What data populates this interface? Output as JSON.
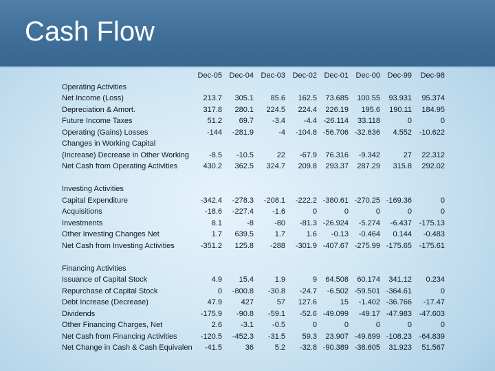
{
  "slide": {
    "title": "Cash Flow"
  },
  "columns": [
    "Dec-05",
    "Dec-04",
    "Dec-03",
    "Dec-02",
    "Dec-01",
    "Dec-00",
    "Dec-99",
    "Dec-98"
  ],
  "rows": [
    {
      "label": "Operating Activities",
      "values": []
    },
    {
      "label": "Net Income (Loss)",
      "values": [
        "213.7",
        "305.1",
        "85.6",
        "162.5",
        "73.685",
        "100.55",
        "93.931",
        "95.374"
      ]
    },
    {
      "label": "Depreciation & Amort.",
      "values": [
        "317.8",
        "280.1",
        "224.5",
        "224.4",
        "226.19",
        "195.6",
        "190.11",
        "184.95"
      ]
    },
    {
      "label": "Future Income Taxes",
      "values": [
        "51.2",
        "69.7",
        "-3.4",
        "-4.4",
        "-26.114",
        "33.118",
        "0",
        "0"
      ]
    },
    {
      "label": "Operating (Gains) Losses",
      "values": [
        "-144",
        "-281.9",
        "-4",
        "-104.8",
        "-56.706",
        "-32.636",
        "4.552",
        "-10.622"
      ]
    },
    {
      "label": "Changes in Working Capital",
      "values": []
    },
    {
      "label": "(Increase) Decrease in Other Working",
      "values": [
        "-8.5",
        "-10.5",
        "22",
        "-67.9",
        "76.316",
        "-9.342",
        "27",
        "22.312"
      ]
    },
    {
      "label": "Net Cash from Operating Activities",
      "values": [
        "430.2",
        "362.5",
        "324.7",
        "209.8",
        "293.37",
        "287.29",
        "315.8",
        "292.02"
      ]
    },
    {
      "label": "",
      "values": []
    },
    {
      "label": "Investing Activities",
      "values": []
    },
    {
      "label": "Capital Expenditure",
      "values": [
        "-342.4",
        "-278.3",
        "-208.1",
        "-222.2",
        "-380.61",
        "-270.25",
        "-169.36",
        "0"
      ]
    },
    {
      "label": "Acquisitions",
      "values": [
        "-18.6",
        "-227.4",
        "-1.6",
        "0",
        "0",
        "0",
        "0",
        "0"
      ]
    },
    {
      "label": "Investments",
      "values": [
        "8.1",
        "-8",
        "-80",
        "-81.3",
        "-26.924",
        "-5.274",
        "-6.437",
        "-175.13"
      ]
    },
    {
      "label": "Other Investing Changes Net",
      "values": [
        "1.7",
        "639.5",
        "1.7",
        "1.6",
        "-0.13",
        "-0.464",
        "0.144",
        "-0.483"
      ]
    },
    {
      "label": "Net Cash from Investing Activities",
      "values": [
        "-351.2",
        "125.8",
        "-288",
        "-301.9",
        "-407.67",
        "-275.99",
        "-175.65",
        "-175.61"
      ]
    },
    {
      "label": "",
      "values": []
    },
    {
      "label": "Financing Activities",
      "values": []
    },
    {
      "label": "Issuance of Capital Stock",
      "values": [
        "4.9",
        "15.4",
        "1.9",
        "9",
        "64.508",
        "60.174",
        "341.12",
        "0.234"
      ]
    },
    {
      "label": "Repurchase of Capital Stock",
      "values": [
        "0",
        "-800.8",
        "-30.8",
        "-24.7",
        "-6.502",
        "-59.501",
        "-364.61",
        "0"
      ]
    },
    {
      "label": "Debt Increase (Decrease)",
      "values": [
        "47.9",
        "427",
        "57",
        "127.6",
        "15",
        "-1.402",
        "-36.766",
        "-17.47"
      ]
    },
    {
      "label": "Dividends",
      "values": [
        "-175.9",
        "-90.8",
        "-59.1",
        "-52.6",
        "-49.099",
        "-49.17",
        "-47.983",
        "-47.603"
      ]
    },
    {
      "label": "Other Financing Charges, Net",
      "values": [
        "2.6",
        "-3.1",
        "-0.5",
        "0",
        "0",
        "0",
        "0",
        "0"
      ]
    },
    {
      "label": "Net Cash from Financing Activities",
      "values": [
        "-120.5",
        "-452.3",
        "-31.5",
        "59.3",
        "23.907",
        "-49.899",
        "-108.23",
        "-64.839"
      ]
    },
    {
      "label": "Net Change in Cash & Cash Equivalents",
      "values": [
        "-41.5",
        "36",
        "5.2",
        "-32.8",
        "-90.389",
        "-38.605",
        "31.923",
        "51.567"
      ]
    }
  ]
}
